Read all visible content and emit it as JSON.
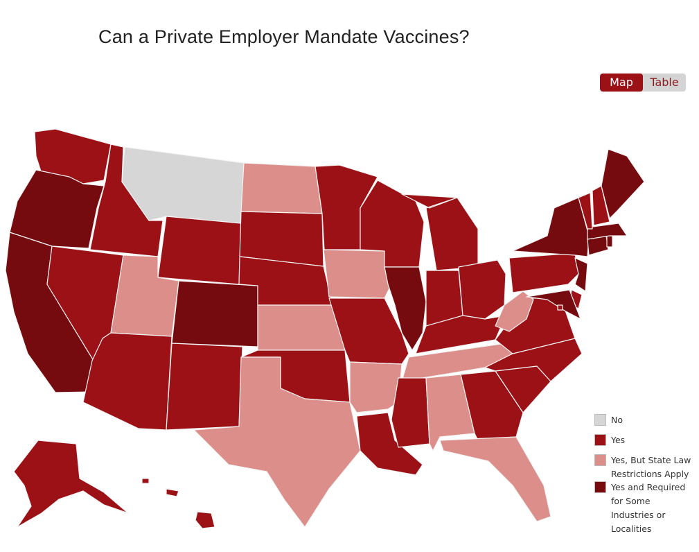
{
  "title": "Can a Private Employer Mandate Vaccines?",
  "view_toggle": {
    "options": [
      "Map",
      "Table"
    ],
    "selected": "Map"
  },
  "colors": {
    "no": "#d6d6d6",
    "yes": "#9b1116",
    "restricted": "#dc8f8a",
    "required": "#760b0f"
  },
  "legend": [
    {
      "key": "no",
      "label": "No"
    },
    {
      "key": "yes",
      "label": "Yes"
    },
    {
      "key": "restricted",
      "label": "Yes, But State Law Restrictions Apply"
    },
    {
      "key": "required",
      "label": "Yes and Required for Some Industries or Localities"
    }
  ],
  "states": {
    "AL": "restricted",
    "AK": "yes",
    "AZ": "yes",
    "AR": "restricted",
    "CA": "required",
    "CO": "required",
    "CT": "required",
    "DE": "yes",
    "FL": "restricted",
    "GA": "yes",
    "HI": "yes",
    "ID": "yes",
    "IL": "required",
    "IN": "yes",
    "IA": "restricted",
    "KS": "restricted",
    "KY": "yes",
    "LA": "yes",
    "ME": "required",
    "MD": "required",
    "MA": "required",
    "MI": "yes",
    "MN": "yes",
    "MS": "yes",
    "MO": "yes",
    "MT": "no",
    "NE": "yes",
    "NV": "yes",
    "NH": "yes",
    "NJ": "required",
    "NM": "yes",
    "NY": "required",
    "NC": "yes",
    "ND": "restricted",
    "OH": "yes",
    "OK": "yes",
    "OR": "required",
    "PA": "yes",
    "RI": "required",
    "SC": "yes",
    "SD": "yes",
    "TN": "restricted",
    "TX": "restricted",
    "UT": "restricted",
    "VT": "yes",
    "VA": "yes",
    "WA": "yes",
    "WV": "restricted",
    "WI": "yes",
    "WY": "yes",
    "DC": "yes"
  }
}
